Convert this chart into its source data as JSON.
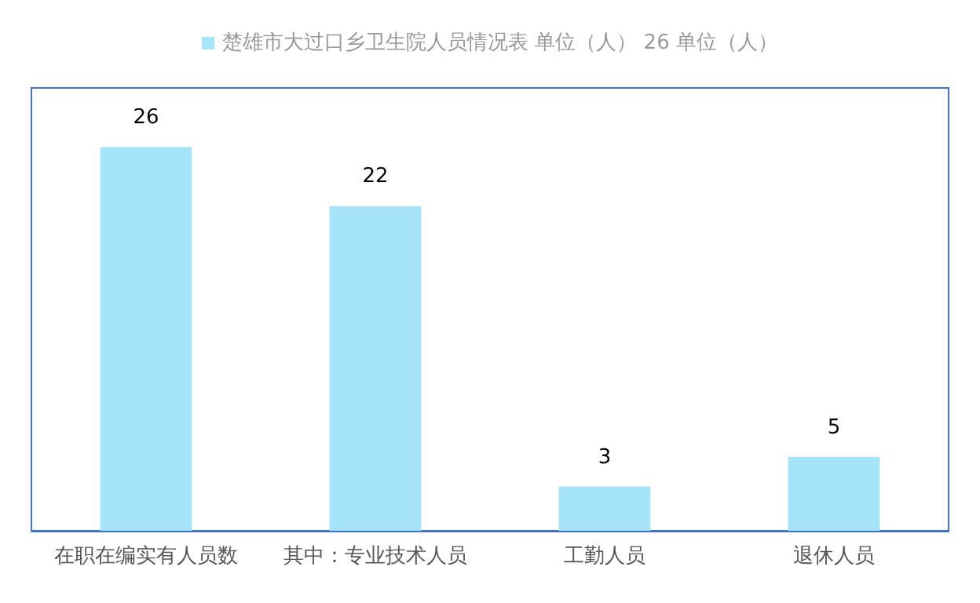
{
  "chart_data": {
    "type": "bar",
    "categories": [
      "在职在编实有人员数",
      "其中：专业技术人员",
      "工勤人员",
      "退休人员"
    ],
    "series": [
      {
        "name": "楚雄市大过口乡卫生院人员情况表 单位（人） 26 单位（人）",
        "color": "#a6e4fa",
        "values": [
          26,
          22,
          3,
          5
        ]
      }
    ],
    "data_labels": true,
    "legend": "top"
  }
}
